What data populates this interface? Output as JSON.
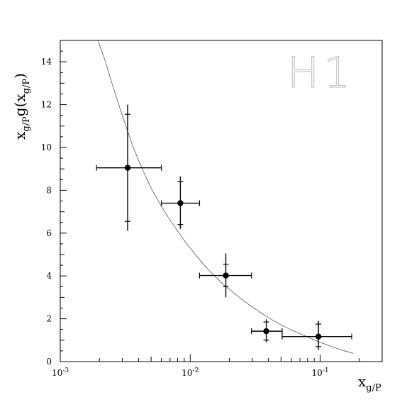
{
  "chart_data": {
    "type": "scatter",
    "title": "",
    "watermark": "H1",
    "xlabel": {
      "main": "x",
      "sub": "g/P"
    },
    "ylabel": {
      "p1": "x",
      "s1": "g/P",
      "p2": "g(x",
      "s2": "g/P",
      "p3": ")"
    },
    "x_scale": "log",
    "xlim": [
      0.001,
      0.3
    ],
    "ylim": [
      0,
      15
    ],
    "x_ticks": [
      {
        "value": 0.001,
        "base": "10",
        "exp": "-3"
      },
      {
        "value": 0.01,
        "base": "10",
        "exp": "-2"
      },
      {
        "value": 0.1,
        "base": "10",
        "exp": "-1"
      }
    ],
    "y_ticks": [
      0,
      2,
      4,
      6,
      8,
      10,
      12,
      14
    ],
    "grid": false,
    "colors": {
      "axes": "#000000",
      "points": "#000000",
      "curve": "#555555",
      "watermark": "#bdbdbd"
    },
    "points": [
      {
        "x": 0.0033,
        "y": 9.05,
        "xerr": [
          0.0019,
          0.006
        ],
        "yerr_total": [
          6.1,
          12.0
        ],
        "yerr_stat": [
          6.55,
          11.55
        ]
      },
      {
        "x": 0.0084,
        "y": 7.4,
        "xerr": [
          0.006,
          0.0118
        ],
        "yerr_total": [
          6.2,
          8.65
        ],
        "yerr_stat": [
          6.4,
          8.4
        ]
      },
      {
        "x": 0.0188,
        "y": 4.02,
        "xerr": [
          0.0118,
          0.0296
        ],
        "yerr_total": [
          3.0,
          5.05
        ],
        "yerr_stat": [
          3.5,
          4.55
        ]
      },
      {
        "x": 0.0385,
        "y": 1.42,
        "xerr": [
          0.0296,
          0.051
        ],
        "yerr_total": [
          0.9,
          1.98
        ],
        "yerr_stat": [
          1.0,
          1.85
        ]
      },
      {
        "x": 0.097,
        "y": 1.17,
        "xerr": [
          0.051,
          0.175
        ],
        "yerr_total": [
          0.55,
          1.9
        ],
        "yerr_stat": [
          0.7,
          1.75
        ]
      }
    ],
    "curve": {
      "x": [
        0.00195,
        0.0022,
        0.0025,
        0.0028,
        0.0032,
        0.0036,
        0.004,
        0.0045,
        0.005,
        0.006,
        0.007,
        0.008,
        0.009,
        0.01,
        0.012,
        0.014,
        0.016,
        0.018,
        0.02,
        0.025,
        0.03,
        0.035,
        0.04,
        0.05,
        0.06,
        0.07,
        0.08,
        0.1,
        0.12,
        0.14,
        0.16,
        0.18
      ],
      "y": [
        15.0,
        14.1,
        13.0,
        12.05,
        11.0,
        10.1,
        9.4,
        8.7,
        8.1,
        7.25,
        6.6,
        6.1,
        5.65,
        5.3,
        4.7,
        4.25,
        3.9,
        3.6,
        3.38,
        2.9,
        2.55,
        2.28,
        2.05,
        1.72,
        1.48,
        1.3,
        1.15,
        0.9,
        0.72,
        0.58,
        0.47,
        0.38
      ]
    }
  }
}
